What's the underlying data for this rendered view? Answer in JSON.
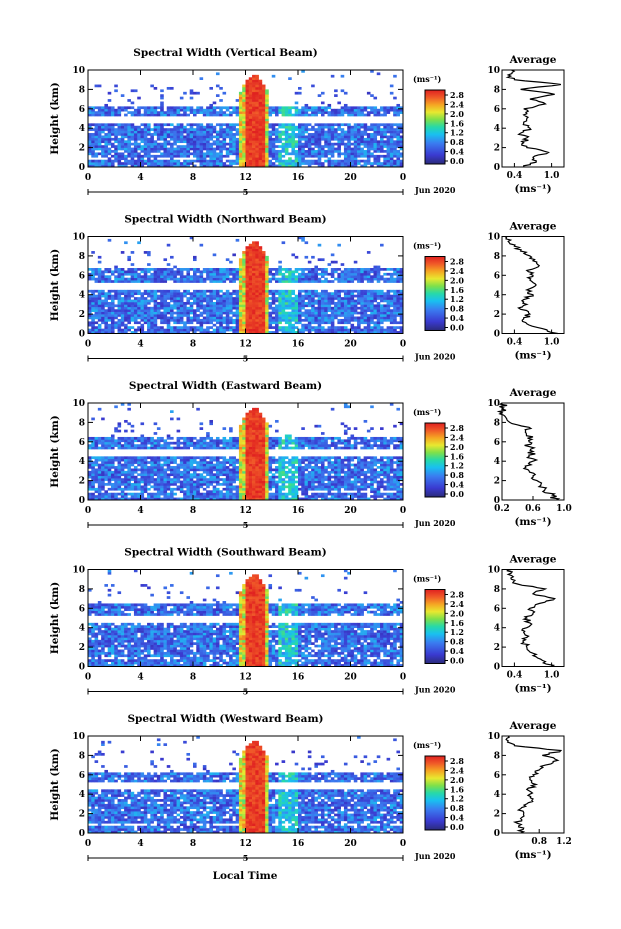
{
  "figure": {
    "bottom_axis_label": "Local Time",
    "date_label": "Jun 2020",
    "date_marker": "5",
    "colorbar_unit": "(ms⁻¹)",
    "colorbar_ticks": [
      "2.8",
      "2.4",
      "2.0",
      "1.6",
      "1.2",
      "0.8",
      "0.4",
      "0.0"
    ],
    "average_title": "Average",
    "average_unit": "(ms⁻¹)",
    "ylabel": "Height (km)"
  },
  "chart_data": [
    {
      "type": "heatmap",
      "title": "Spectral Width (Vertical Beam)",
      "xticks": [
        "0",
        "4",
        "8",
        "12",
        "16",
        "20",
        "0"
      ],
      "yticks": [
        "0",
        "2",
        "4",
        "6",
        "8",
        "10"
      ],
      "xlim": [
        0,
        24
      ],
      "ylim": [
        0,
        10
      ],
      "clim": [
        0.0,
        3.0
      ],
      "cloud_top_km": 6.3,
      "convective_event_hours": [
        11.5,
        13.8
      ],
      "profile": {
        "title": "Average",
        "xticks": [
          "0.4",
          "1.0"
        ],
        "xlim": [
          0.2,
          1.2
        ],
        "heights": [
          0,
          0.5,
          1,
          1.5,
          2,
          2.5,
          3,
          3.5,
          4,
          4.5,
          5,
          5.5,
          6,
          6.5,
          7,
          7.5,
          8,
          8.5,
          9,
          9.5,
          10
        ],
        "values": [
          0.55,
          0.75,
          0.7,
          0.95,
          0.6,
          0.55,
          0.6,
          0.5,
          0.65,
          0.55,
          0.6,
          0.6,
          0.55,
          0.9,
          0.65,
          1.05,
          0.5,
          1.15,
          0.4,
          0.3,
          0.35
        ]
      }
    },
    {
      "type": "heatmap",
      "title": "Spectral Width (Northward Beam)",
      "xticks": [
        "0",
        "4",
        "8",
        "12",
        "16",
        "20",
        "0"
      ],
      "yticks": [
        "0",
        "2",
        "4",
        "6",
        "8",
        "10"
      ],
      "xlim": [
        0,
        24
      ],
      "ylim": [
        0,
        10
      ],
      "clim": [
        0.0,
        3.0
      ],
      "cloud_top_km": 6.8,
      "convective_event_hours": [
        11.5,
        13.8
      ],
      "profile": {
        "title": "Average",
        "xticks": [
          "0.4",
          "1.0"
        ],
        "xlim": [
          0.2,
          1.2
        ],
        "heights": [
          0,
          0.5,
          1,
          1.5,
          2,
          2.5,
          3,
          3.5,
          4,
          4.5,
          5,
          5.5,
          6,
          6.5,
          7,
          7.5,
          8,
          8.5,
          9,
          9.5,
          10
        ],
        "values": [
          1.1,
          0.85,
          0.6,
          0.55,
          0.65,
          0.5,
          0.6,
          0.55,
          0.7,
          0.6,
          0.75,
          0.65,
          0.7,
          0.6,
          0.8,
          0.7,
          0.65,
          0.5,
          0.4,
          0.3,
          0.25
        ]
      }
    },
    {
      "type": "heatmap",
      "title": "Spectral Width (Eastward Beam)",
      "xticks": [
        "0",
        "4",
        "8",
        "12",
        "16",
        "20",
        "0"
      ],
      "yticks": [
        "0",
        "2",
        "4",
        "6",
        "8",
        "10"
      ],
      "xlim": [
        0,
        24
      ],
      "ylim": [
        0,
        10
      ],
      "clim": [
        0.0,
        3.0
      ],
      "cloud_top_km": 6.5,
      "convective_event_hours": [
        11.5,
        13.8
      ],
      "profile": {
        "title": "Average",
        "xticks": [
          "0.2",
          "0.6",
          "1.0"
        ],
        "xlim": [
          0.2,
          1.0
        ],
        "heights": [
          0,
          0.5,
          1,
          1.5,
          2,
          2.5,
          3,
          3.5,
          4,
          4.5,
          5,
          5.5,
          6,
          6.5,
          7,
          7.5,
          8,
          8.5,
          9,
          9.5,
          10
        ],
        "values": [
          0.9,
          0.85,
          0.75,
          0.7,
          0.65,
          0.6,
          0.55,
          0.5,
          0.6,
          0.55,
          0.6,
          0.55,
          0.55,
          0.6,
          0.5,
          0.55,
          0.3,
          0.25,
          0.2,
          0.22,
          0.2
        ]
      }
    },
    {
      "type": "heatmap",
      "title": "Spectral Width (Southward Beam)",
      "xticks": [
        "0",
        "4",
        "8",
        "12",
        "16",
        "20",
        "0"
      ],
      "yticks": [
        "0",
        "2",
        "4",
        "6",
        "8",
        "10"
      ],
      "xlim": [
        0,
        24
      ],
      "ylim": [
        0,
        10
      ],
      "clim": [
        0.0,
        3.0
      ],
      "cloud_top_km": 6.6,
      "convective_event_hours": [
        11.5,
        13.8
      ],
      "profile": {
        "title": "Average",
        "xticks": [
          "0.4",
          "1.0"
        ],
        "xlim": [
          0.2,
          1.2
        ],
        "heights": [
          0,
          0.5,
          1,
          1.5,
          2,
          2.5,
          3,
          3.5,
          4,
          4.5,
          5,
          5.5,
          6,
          6.5,
          7,
          7.5,
          8,
          8.5,
          9,
          9.5,
          10
        ],
        "values": [
          1.0,
          0.9,
          0.75,
          0.65,
          0.6,
          0.55,
          0.6,
          0.55,
          0.6,
          0.65,
          0.6,
          0.7,
          0.65,
          0.8,
          1.05,
          0.7,
          0.9,
          0.45,
          0.35,
          0.3,
          0.35
        ]
      }
    },
    {
      "type": "heatmap",
      "title": "Spectral Width (Westward Beam)",
      "xticks": [
        "0",
        "4",
        "8",
        "12",
        "16",
        "20",
        "0"
      ],
      "yticks": [
        "0",
        "2",
        "4",
        "6",
        "8",
        "10"
      ],
      "xlim": [
        0,
        24
      ],
      "ylim": [
        0,
        10
      ],
      "clim": [
        0.0,
        3.0
      ],
      "cloud_top_km": 6.3,
      "convective_event_hours": [
        11.5,
        13.8
      ],
      "profile": {
        "title": "Average",
        "xticks": [
          "0.8",
          "1.2"
        ],
        "xlim": [
          0.2,
          1.2
        ],
        "heights": [
          0,
          0.5,
          1,
          1.5,
          2,
          2.5,
          3,
          3.5,
          4,
          4.5,
          5,
          5.5,
          6,
          6.5,
          7,
          7.5,
          8,
          8.5,
          9,
          9.5,
          10
        ],
        "values": [
          0.5,
          0.55,
          0.45,
          0.5,
          0.55,
          0.5,
          0.6,
          0.7,
          0.65,
          0.6,
          0.75,
          0.65,
          0.7,
          0.8,
          0.9,
          1.1,
          0.85,
          1.15,
          0.4,
          0.3,
          0.3
        ]
      }
    }
  ]
}
